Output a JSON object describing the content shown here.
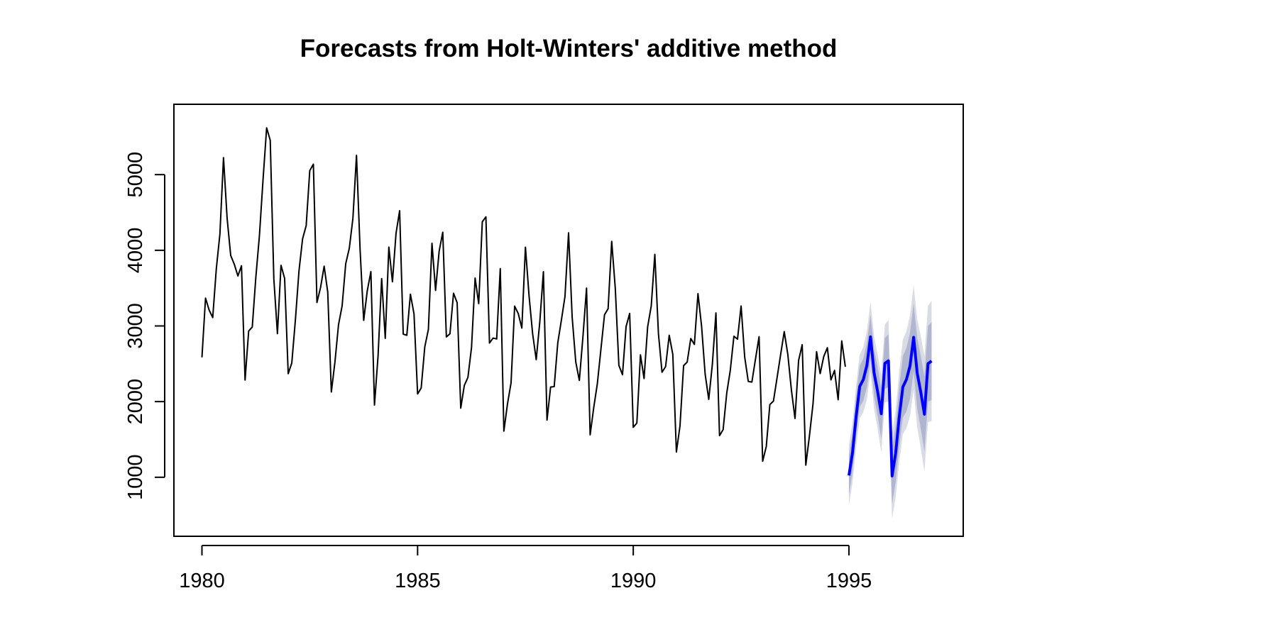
{
  "chart_data": {
    "type": "line",
    "title": "Forecasts from Holt-Winters' additive method",
    "xlabel": "",
    "ylabel": "",
    "xlim": [
      1979.35,
      1997.65
    ],
    "ylim": [
      220,
      5930
    ],
    "x_ticks": [
      1980,
      1985,
      1990,
      1995
    ],
    "x_tick_labels": [
      "1980",
      "1985",
      "1990",
      "1995"
    ],
    "y_ticks": [
      1000,
      2000,
      3000,
      4000,
      5000
    ],
    "y_tick_labels": [
      "1000",
      "2000",
      "3000",
      "4000",
      "5000"
    ],
    "frequency": 12,
    "grid": false,
    "legend": "none",
    "colors": {
      "history": "#000000",
      "forecast": "#0000ff",
      "band80": "#b0b5d0",
      "band95": "#d9dbe5"
    },
    "series": [
      {
        "start": 1980.0,
        "values": [
          2585,
          3368,
          3210,
          3111,
          3756,
          4216,
          5225,
          4426,
          3932,
          3816,
          3661,
          3795,
          2285,
          2934,
          2985,
          3646,
          4198,
          4935,
          5618,
          5454,
          3624,
          2898,
          3802,
          3629,
          2369,
          2511,
          3079,
          3728,
          4151,
          4326,
          5054,
          5138,
          3310,
          3508,
          3790,
          3446,
          2127,
          2523,
          3017,
          3265,
          3822,
          4027,
          4420,
          5255,
          4009,
          3074,
          3465,
          3718,
          1954,
          2604,
          3626,
          2836,
          4042,
          3584,
          4225,
          4523,
          2892,
          2876,
          3420,
          3159,
          2101,
          2181,
          2724,
          2954,
          4092,
          3470,
          3990,
          4239,
          2855,
          2897,
          3433,
          3307,
          1914,
          2214,
          2320,
          2714,
          3633,
          3295,
          4377,
          4442,
          2774,
          2840,
          2828,
          3758,
          1610,
          1968,
          2248,
          3262,
          3164,
          2972,
          4041,
          3402,
          2898,
          2555,
          3056,
          3717,
          1755,
          2193,
          2198,
          2777,
          3076,
          3389,
          4231,
          3118,
          2524,
          2280,
          2860,
          3500,
          1561,
          1921,
          2234,
          2692,
          3148,
          3228,
          4118,
          3495,
          2478,
          2355,
          2992,
          3165,
          1660,
          1717,
          2618,
          2305,
          2988,
          3264,
          3947,
          2901,
          2388,
          2463,
          2877,
          2624,
          1334,
          1679,
          2475,
          2523,
          2834,
          2756,
          3427,
          3000,
          2363,
          2030,
          2490,
          3172,
          1550,
          1630,
          2110,
          2416,
          2864,
          2825,
          3264,
          2589,
          2266,
          2258,
          2561,
          2858,
          1212,
          1405,
          1961,
          2006,
          2313,
          2622,
          2925,
          2623,
          2153,
          1777,
          2544,
          2752,
          1160,
          1542,
          1966,
          2660,
          2370,
          2597,
          2712,
          2287,
          2412,
          2025,
          2802,
          2461
        ]
      },
      {
        "start": 1995.0,
        "values": [
          1023,
          1328,
          1803,
          2201,
          2291,
          2480,
          2856,
          2380,
          2129,
          1840,
          2506,
          2540,
          1017,
          1317,
          1801,
          2194,
          2292,
          2474,
          2850,
          2375,
          2122,
          1833,
          2502,
          2537
        ],
        "lo80": [
          770,
          1070,
          1540,
          1930,
          2010,
          2190,
          2560,
          2070,
          1810,
          1510,
          2170,
          2190,
          650,
          940,
          1410,
          1790,
          1870,
          2040,
          2400,
          1910,
          1640,
          1340,
          2000,
          2020
        ],
        "hi80": [
          1280,
          1590,
          2070,
          2470,
          2570,
          2770,
          3150,
          2690,
          2450,
          2170,
          2840,
          2890,
          1380,
          1690,
          2190,
          2600,
          2710,
          2910,
          3300,
          2840,
          2600,
          2330,
          3000,
          3050
        ],
        "lo95": [
          630,
          930,
          1390,
          1780,
          1860,
          2030,
          2390,
          1900,
          1640,
          1330,
          1990,
          2000,
          450,
          740,
          1200,
          1570,
          1650,
          1810,
          2160,
          1660,
          1380,
          1070,
          1730,
          1740
        ],
        "hi95": [
          1420,
          1730,
          2210,
          2620,
          2720,
          2930,
          3320,
          2860,
          2620,
          2350,
          3020,
          3080,
          1580,
          1890,
          2400,
          2820,
          2930,
          3140,
          3540,
          3090,
          2860,
          2600,
          3270,
          3330
        ]
      }
    ]
  }
}
